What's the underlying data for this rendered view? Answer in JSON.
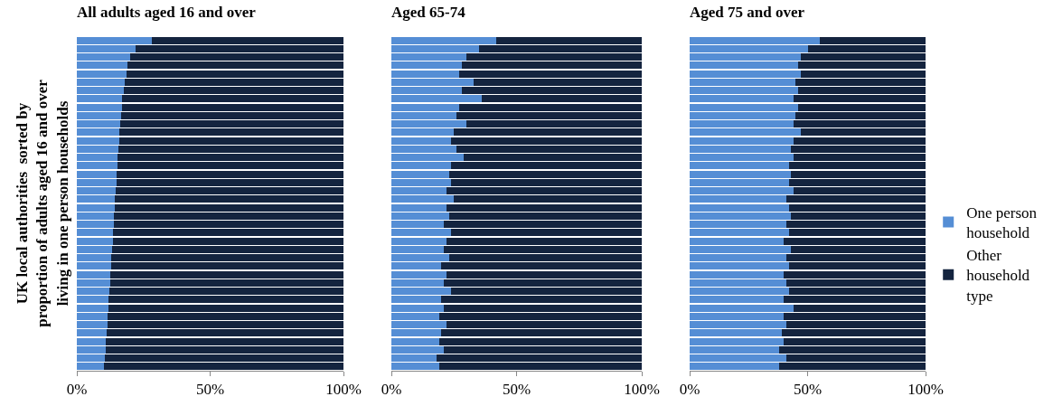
{
  "chart_data": [
    {
      "type": "bar",
      "orientation": "horizontal",
      "stacked": true,
      "title": "All adults aged 16 and over",
      "ylabel": "UK local authorities  sorted by proportion of adults aged 16 and over living in one person households",
      "tick_labels": "x",
      "legend": false,
      "categories": [
        null,
        null,
        null,
        null,
        null,
        null,
        null,
        null,
        null,
        null,
        null,
        null,
        null,
        null,
        null,
        null,
        null,
        null,
        null,
        null,
        null,
        null,
        null,
        null,
        null,
        null,
        null,
        null,
        null,
        null,
        null,
        null,
        null,
        null,
        null,
        null,
        null,
        null,
        null,
        null
      ],
      "xlim": [
        0,
        100
      ],
      "xticks": [
        {
          "value": 0,
          "label": "0%"
        },
        {
          "value": 50,
          "label": "50%"
        },
        {
          "value": 100,
          "label": "100%"
        }
      ],
      "series": [
        {
          "color": "#558ed5",
          "values": [
            28,
            22,
            20,
            19,
            18.5,
            18,
            17.5,
            17,
            16.8,
            16.5,
            16.2,
            16,
            15.8,
            15.6,
            15.4,
            15.2,
            15,
            14.8,
            14.6,
            14.4,
            14.2,
            14,
            13.8,
            13.6,
            13.4,
            13.2,
            13,
            12.8,
            12.6,
            12.4,
            12.2,
            12,
            11.8,
            11.6,
            11.4,
            11.2,
            11,
            10.8,
            10.5,
            10
          ]
        },
        {
          "color": "#14243f",
          "values": [
            72,
            78,
            80,
            81,
            81.5,
            82,
            82.5,
            83,
            83.2,
            83.5,
            83.8,
            84,
            84.2,
            84.4,
            84.6,
            84.8,
            85,
            85.2,
            85.4,
            85.6,
            85.8,
            86,
            86.2,
            86.4,
            86.6,
            86.8,
            87,
            87.2,
            87.4,
            87.6,
            87.8,
            88,
            88.2,
            88.4,
            88.6,
            88.8,
            89,
            89.2,
            89.5,
            90
          ]
        }
      ]
    },
    {
      "type": "bar",
      "orientation": "horizontal",
      "stacked": true,
      "title": "Aged 65-74",
      "tick_labels": "x",
      "legend": false,
      "categories": [
        null,
        null,
        null,
        null,
        null,
        null,
        null,
        null,
        null,
        null,
        null,
        null,
        null,
        null,
        null,
        null,
        null,
        null,
        null,
        null,
        null,
        null,
        null,
        null,
        null,
        null,
        null,
        null,
        null,
        null,
        null,
        null,
        null,
        null,
        null,
        null,
        null,
        null,
        null,
        null
      ],
      "xlim": [
        0,
        100
      ],
      "xticks": [
        {
          "value": 0,
          "label": "0%"
        },
        {
          "value": 50,
          "label": "50%"
        },
        {
          "value": 100,
          "label": "100%"
        }
      ],
      "series": [
        {
          "color": "#558ed5",
          "values": [
            42,
            35,
            30,
            28,
            27,
            33,
            28,
            36,
            27,
            26,
            30,
            25,
            24,
            26,
            29,
            24,
            23,
            24,
            22,
            25,
            22,
            23,
            21,
            24,
            22,
            21,
            23,
            20,
            22,
            21,
            24,
            20,
            21,
            19,
            22,
            20,
            19,
            21,
            18,
            19
          ]
        },
        {
          "color": "#14243f",
          "values": [
            58,
            65,
            70,
            72,
            73,
            67,
            72,
            64,
            73,
            74,
            70,
            75,
            76,
            74,
            71,
            76,
            77,
            76,
            78,
            75,
            78,
            77,
            79,
            76,
            78,
            79,
            77,
            80,
            78,
            79,
            76,
            80,
            79,
            81,
            78,
            80,
            81,
            79,
            82,
            81
          ]
        }
      ]
    },
    {
      "type": "bar",
      "orientation": "horizontal",
      "stacked": true,
      "title": "Aged 75 and over",
      "tick_labels": "x",
      "legend": "right",
      "categories": [
        null,
        null,
        null,
        null,
        null,
        null,
        null,
        null,
        null,
        null,
        null,
        null,
        null,
        null,
        null,
        null,
        null,
        null,
        null,
        null,
        null,
        null,
        null,
        null,
        null,
        null,
        null,
        null,
        null,
        null,
        null,
        null,
        null,
        null,
        null,
        null,
        null,
        null,
        null,
        null
      ],
      "xlim": [
        0,
        100
      ],
      "xticks": [
        {
          "value": 0,
          "label": "0%"
        },
        {
          "value": 50,
          "label": "50%"
        },
        {
          "value": 100,
          "label": "100%"
        }
      ],
      "series": [
        {
          "name": "One person household",
          "color": "#558ed5",
          "values": [
            55,
            50,
            47,
            46,
            47,
            45,
            46,
            44,
            46,
            45,
            44,
            47,
            44,
            43,
            44,
            42,
            43,
            42,
            44,
            41,
            42,
            43,
            41,
            42,
            40,
            43,
            41,
            42,
            40,
            41,
            42,
            40,
            44,
            40,
            41,
            39,
            40,
            38,
            41,
            38
          ]
        },
        {
          "name": "Other household type",
          "color": "#14243f",
          "values": [
            45,
            50,
            53,
            54,
            53,
            55,
            54,
            56,
            54,
            55,
            56,
            53,
            56,
            57,
            56,
            58,
            57,
            58,
            56,
            59,
            58,
            57,
            59,
            58,
            60,
            57,
            59,
            58,
            60,
            59,
            58,
            60,
            56,
            60,
            59,
            61,
            60,
            62,
            59,
            62
          ]
        }
      ]
    }
  ]
}
